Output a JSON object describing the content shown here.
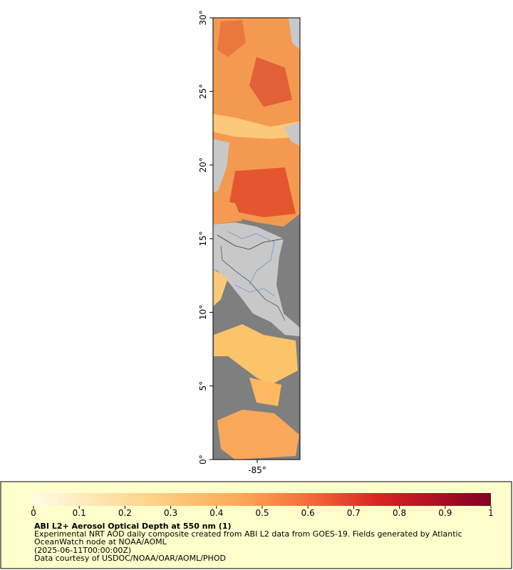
{
  "map": {
    "ylim": [
      0,
      30
    ],
    "xlim": [
      -88,
      -82.1
    ],
    "yticks": [
      {
        "value": 0,
        "label": "0°"
      },
      {
        "value": 5,
        "label": "5°"
      },
      {
        "value": 10,
        "label": "10°"
      },
      {
        "value": 15,
        "label": "15°"
      },
      {
        "value": 20,
        "label": "20°"
      },
      {
        "value": 25,
        "label": "25°"
      },
      {
        "value": 30,
        "label": "30°"
      }
    ],
    "xticks": [
      {
        "value": -85,
        "label": "-85°"
      }
    ]
  },
  "legend": {
    "title": "ABI L2+ Aerosol Optical Depth at 550 nm (1)",
    "lines": [
      "Experimental NRT AOD daily composite created from ABI L2 data from GOES-19. Fields generated by Atlantic",
      "OceanWatch node at NOAA/AOML",
      "(2025-06-11T00:00:00Z)",
      "Data courtesy of USDOC/NOAA/OAR/AOML/PHOD"
    ],
    "colorbar": {
      "range": [
        0,
        1
      ],
      "ticks": [
        0,
        0.1,
        0.2,
        0.3,
        0.4,
        0.5,
        0.6,
        0.7,
        0.8,
        0.9,
        1
      ]
    }
  }
}
